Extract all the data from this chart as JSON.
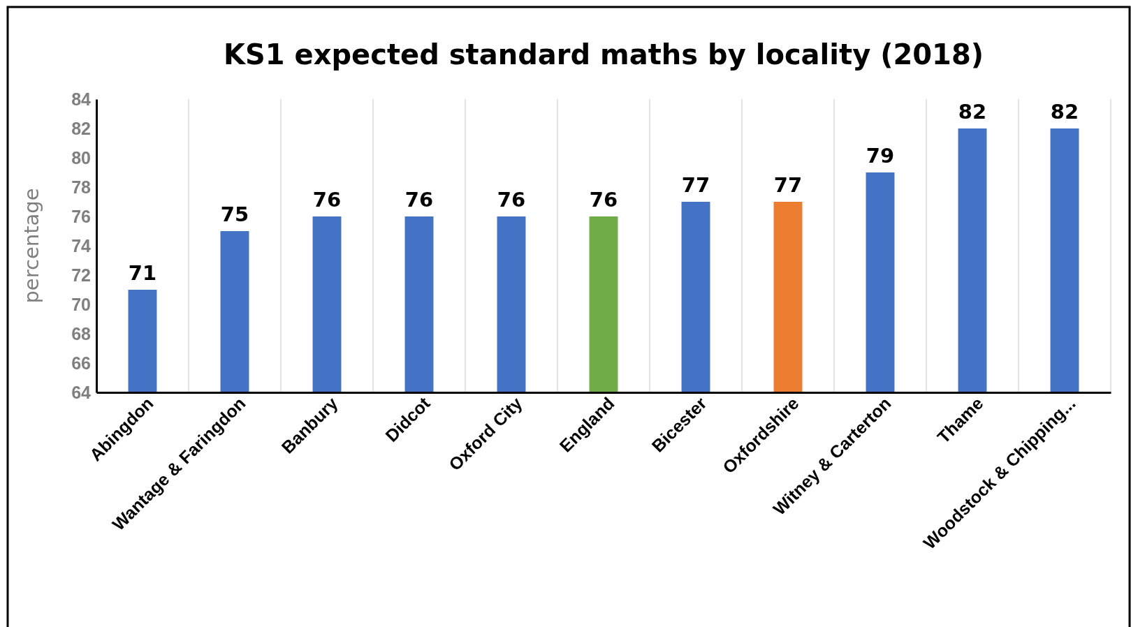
{
  "chart_data": {
    "type": "bar",
    "title": "KS1 expected standard maths by locality (2018)",
    "ylabel": "percentage",
    "categories": [
      "Abingdon",
      "Wantage & Faringdon",
      "Banbury",
      "Didcot",
      "Oxford City",
      "England",
      "Bicester",
      "Oxfordshire",
      "Witney & Carterton",
      "Thame",
      "Woodstock & Chipping..."
    ],
    "values": [
      71,
      75,
      76,
      76,
      76,
      76,
      77,
      77,
      79,
      82,
      82
    ],
    "colors": [
      "#4472c4",
      "#4472c4",
      "#4472c4",
      "#4472c4",
      "#4472c4",
      "#70ad47",
      "#4472c4",
      "#ed7d31",
      "#4472c4",
      "#4472c4",
      "#4472c4"
    ],
    "ylim": [
      64,
      84
    ],
    "yticks": [
      64,
      66,
      68,
      70,
      72,
      74,
      76,
      78,
      80,
      82,
      84
    ],
    "grid": "x",
    "data_labels": true
  }
}
